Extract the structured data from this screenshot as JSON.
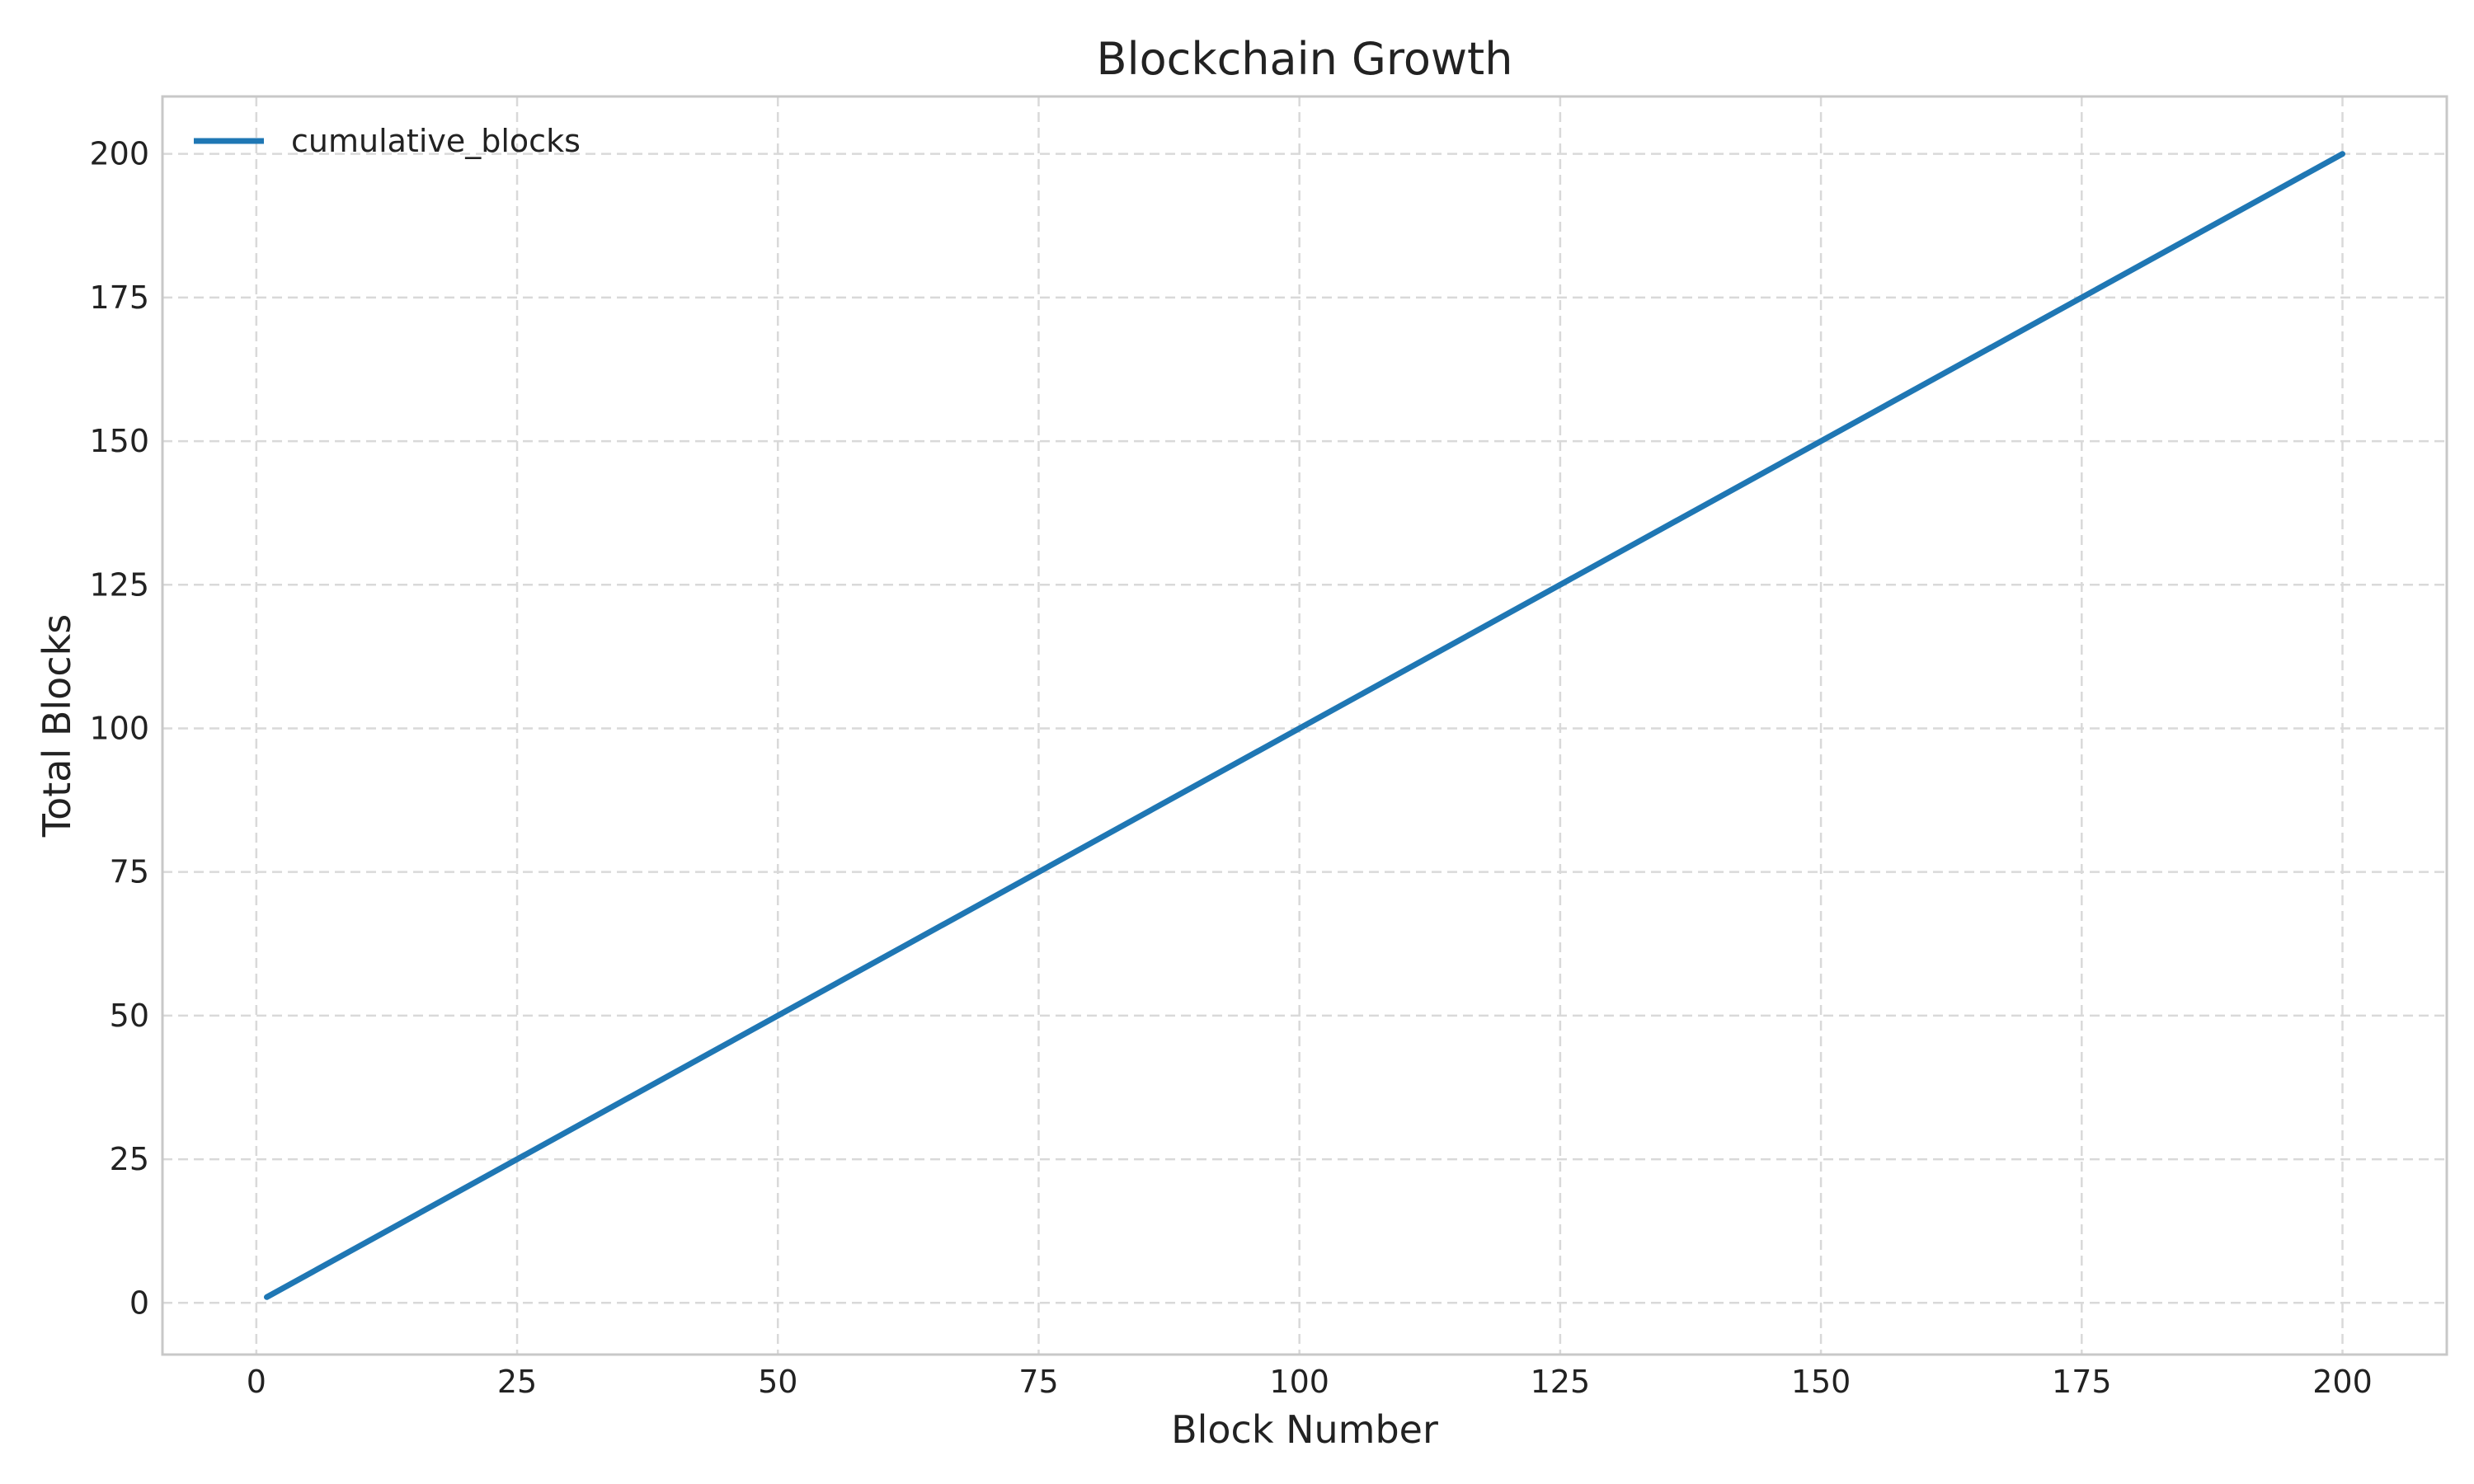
{
  "chart_data": {
    "type": "line",
    "title": "Blockchain Growth",
    "xlabel": "Block Number",
    "ylabel": "Total Blocks",
    "xlim": [
      -9,
      210
    ],
    "ylim": [
      -9,
      210
    ],
    "xticks": [
      0,
      25,
      50,
      75,
      100,
      125,
      150,
      175,
      200
    ],
    "yticks": [
      0,
      25,
      50,
      75,
      100,
      125,
      150,
      175,
      200
    ],
    "grid": true,
    "legend_position": "top-left",
    "series": [
      {
        "name": "cumulative_blocks",
        "color": "#1f77b4",
        "x": [
          1,
          200
        ],
        "y": [
          1,
          200
        ]
      }
    ]
  }
}
